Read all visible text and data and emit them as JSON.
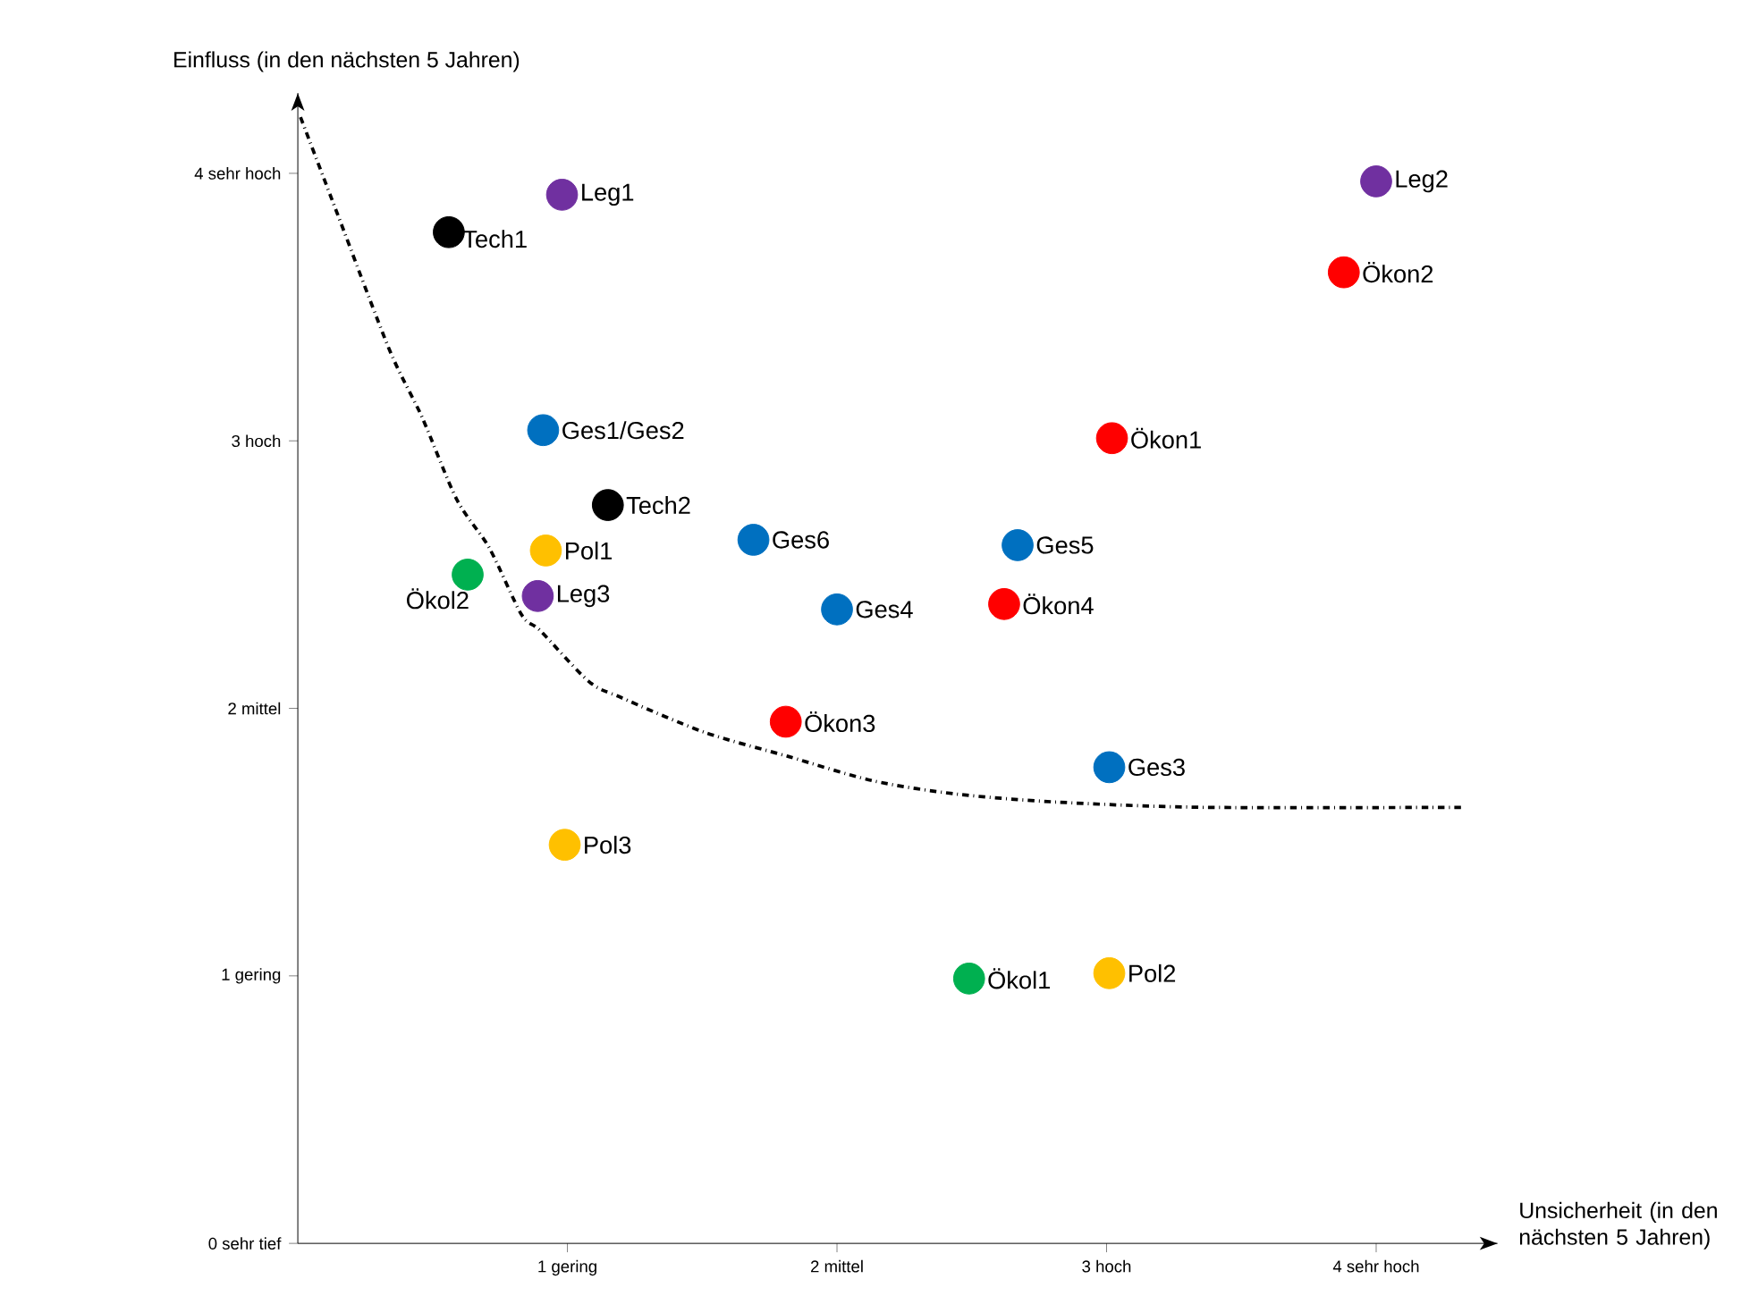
{
  "chart_data": {
    "type": "scatter",
    "xlabel": "Unsicherheit (in den nächsten 5 Jahren)",
    "ylabel": "Einfluss (in den nächsten 5 Jahren)",
    "xlim": [
      0,
      4.45
    ],
    "ylim": [
      0,
      4.3
    ],
    "xticks": [
      {
        "value": 1,
        "label": "1 gering"
      },
      {
        "value": 2,
        "label": "2 mittel"
      },
      {
        "value": 3,
        "label": "3 hoch"
      },
      {
        "value": 4,
        "label": "4 sehr hoch"
      }
    ],
    "yticks": [
      {
        "value": 0,
        "label": "0 sehr tief"
      },
      {
        "value": 1,
        "label": "1 gering"
      },
      {
        "value": 2,
        "label": "2 mittel"
      },
      {
        "value": 3,
        "label": "3 hoch"
      },
      {
        "value": 4,
        "label": "4 sehr hoch"
      }
    ],
    "grid": false,
    "marker": "circle",
    "series": [
      {
        "name": "Tech1",
        "color": "#000000",
        "x": [
          0.56
        ],
        "values": [
          3.78
        ]
      },
      {
        "name": "Leg1",
        "color": "#7030a0",
        "x": [
          0.98
        ],
        "values": [
          3.92
        ]
      },
      {
        "name": "Leg2",
        "color": "#7030a0",
        "x": [
          4.0
        ],
        "values": [
          3.97
        ]
      },
      {
        "name": "Ökon2",
        "color": "#ff0000",
        "x": [
          3.88
        ],
        "values": [
          3.63
        ]
      },
      {
        "name": "Ges1/Ges2",
        "color": "#0070c0",
        "x": [
          0.91
        ],
        "values": [
          3.04
        ]
      },
      {
        "name": "Ökon1",
        "color": "#ff0000",
        "x": [
          3.02
        ],
        "values": [
          3.01
        ]
      },
      {
        "name": "Tech2",
        "color": "#000000",
        "x": [
          1.15
        ],
        "values": [
          2.76
        ]
      },
      {
        "name": "Pol1",
        "color": "#ffc000",
        "x": [
          0.92
        ],
        "values": [
          2.59
        ]
      },
      {
        "name": "Ökol2",
        "color": "#00b050",
        "x": [
          0.63
        ],
        "values": [
          2.5
        ]
      },
      {
        "name": "Leg3",
        "color": "#7030a0",
        "x": [
          0.89
        ],
        "values": [
          2.42
        ]
      },
      {
        "name": "Ges6",
        "color": "#0070c0",
        "x": [
          1.69
        ],
        "values": [
          2.63
        ]
      },
      {
        "name": "Ges5",
        "color": "#0070c0",
        "x": [
          2.67
        ],
        "values": [
          2.61
        ]
      },
      {
        "name": "Ges4",
        "color": "#0070c0",
        "x": [
          2.0
        ],
        "values": [
          2.37
        ]
      },
      {
        "name": "Ökon4",
        "color": "#ff0000",
        "x": [
          2.62
        ],
        "values": [
          2.39
        ]
      },
      {
        "name": "Ökon3",
        "color": "#ff0000",
        "x": [
          1.81
        ],
        "values": [
          1.95
        ]
      },
      {
        "name": "Ges3",
        "color": "#0070c0",
        "x": [
          3.01
        ],
        "values": [
          1.78
        ]
      },
      {
        "name": "Pol3",
        "color": "#ffc000",
        "x": [
          0.99
        ],
        "values": [
          1.49
        ]
      },
      {
        "name": "Ökol1",
        "color": "#00b050",
        "x": [
          2.49
        ],
        "values": [
          0.99
        ]
      },
      {
        "name": "Pol2",
        "color": "#ffc000",
        "x": [
          3.01
        ],
        "values": [
          1.01
        ]
      },
      {
        "type": "line",
        "color": "#000000",
        "line_style": "dashdot",
        "marker": "none",
        "x": [
          0.01,
          0.15,
          0.34,
          0.46,
          0.59,
          0.71,
          0.83,
          0.9,
          1.08,
          1.2,
          1.51,
          1.82,
          2.13,
          2.44,
          2.81,
          3.36,
          4.33
        ],
        "values": [
          4.21,
          3.84,
          3.34,
          3.09,
          2.78,
          2.6,
          2.35,
          2.29,
          2.1,
          2.04,
          1.91,
          1.82,
          1.73,
          1.68,
          1.65,
          1.63,
          1.63
        ]
      }
    ]
  }
}
